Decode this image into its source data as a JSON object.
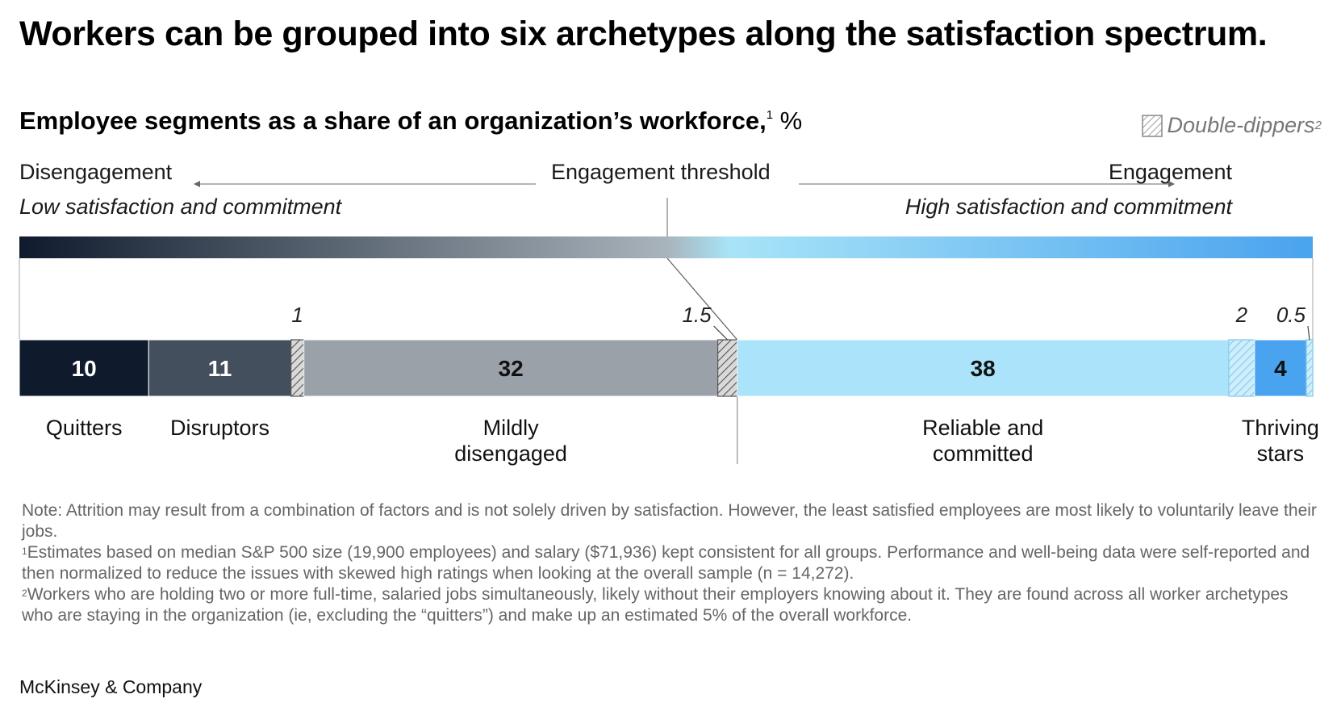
{
  "title": "Workers can be grouped into six archetypes along the satisfaction spectrum.",
  "subtitle": "Employee segments as a share of an organization’s workforce,",
  "subtitle_footnote": "1",
  "subtitle_unit": "%",
  "legend": {
    "label": "Double-dippers",
    "footnote": "2"
  },
  "axis": {
    "left_label": "Disengagement",
    "center_label": "Engagement threshold",
    "right_label": "Engagement",
    "left_sublabel": "Low satisfaction and commitment",
    "right_sublabel": "High satisfaction and commitment"
  },
  "colors": {
    "gradient_start": "#0f1b2d",
    "gradient_mid": "#a8e4f8",
    "gradient_end": "#4aa3ee",
    "quitters": "#0f1b2d",
    "disruptors": "#434f5c",
    "mildly_disengaged": "#9ba1a8",
    "reliable": "#aae3fa",
    "thriving": "#4aa3ee",
    "hatch_dark": "#555555",
    "hatch_light": "#7fc9ea"
  },
  "chart_data": {
    "type": "bar",
    "orientation": "horizontal-stacked",
    "unit": "%",
    "segments": [
      {
        "name": "Quitters",
        "value": 10,
        "label": "10",
        "double_dipper": false
      },
      {
        "name": "Disruptors",
        "value": 11,
        "label": "11",
        "double_dipper": false
      },
      {
        "name": "",
        "value": 1,
        "label": "1",
        "double_dipper": true
      },
      {
        "name": "Mildly disengaged",
        "value": 32,
        "label": "32",
        "double_dipper": false
      },
      {
        "name": "",
        "value": 1.5,
        "label": "1.5",
        "double_dipper": true
      },
      {
        "name": "Reliable and committed",
        "value": 38,
        "label": "38",
        "double_dipper": false
      },
      {
        "name": "",
        "value": 2,
        "label": "2",
        "double_dipper": true
      },
      {
        "name": "Thriving stars",
        "value": 4,
        "label": "4",
        "double_dipper": false
      },
      {
        "name": "",
        "value": 0.5,
        "label": "0.5",
        "double_dipper": true
      }
    ],
    "category_labels": [
      {
        "line1": "Quitters",
        "line2": ""
      },
      {
        "line1": "Disruptors",
        "line2": ""
      },
      {
        "line1": "Mildly",
        "line2": "disengaged"
      },
      {
        "line1": "Reliable and",
        "line2": "committed"
      },
      {
        "line1": "Thriving",
        "line2": "stars"
      }
    ]
  },
  "notes": [
    {
      "marker": "",
      "text": "Note: Attrition may result from a combination of factors and is not solely driven by satisfaction. However, the least satisfied employees are most likely to voluntarily leave their jobs."
    },
    {
      "marker": "1",
      "text": "Estimates based on median S&P 500 size (19,900 employees) and salary ($71,936) kept consistent for all groups. Performance and well-being data were self-reported and then normalized to reduce the issues with skewed high ratings when looking at the overall sample (n = 14,272)."
    },
    {
      "marker": "2",
      "text": "Workers who are holding two or more full-time, salaried jobs simultaneously, likely without their employers knowing about it. They are found across all worker archetypes who are staying in the organization (ie, excluding the “quitters”) and make up an estimated 5% of the overall workforce."
    }
  ],
  "source": "McKinsey & Company"
}
